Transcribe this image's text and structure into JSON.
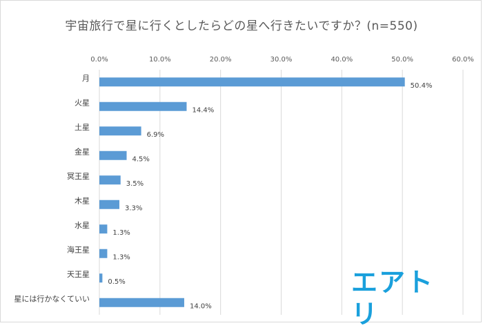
{
  "chart_data": {
    "type": "bar",
    "orientation": "horizontal",
    "title": "宇宙旅行で星に行くとしたらどの星へ行きたいですか？(n=550)",
    "categories": [
      "月",
      "火星",
      "土星",
      "金星",
      "冥王星",
      "木星",
      "水星",
      "海王星",
      "天王星",
      "星には行かなくていい"
    ],
    "values": [
      50.4,
      14.4,
      6.9,
      4.5,
      3.5,
      3.3,
      1.3,
      1.3,
      0.5,
      14.0
    ],
    "value_labels": [
      "50.4%",
      "14.4%",
      "6.9%",
      "4.5%",
      "3.5%",
      "3.3%",
      "1.3%",
      "1.3%",
      "0.5%",
      "14.0%"
    ],
    "xlim": [
      0,
      60
    ],
    "x_ticks": [
      "0.0%",
      "10.0%",
      "20.0%",
      "30.0%",
      "40.0%",
      "50.0%",
      "60.0%"
    ],
    "x_axis_position": "top",
    "grid": true,
    "legend": "none",
    "bar_color": "#5b9bd5"
  },
  "logo": {
    "text": "エアトリ",
    "color": "#1aa0dc"
  }
}
